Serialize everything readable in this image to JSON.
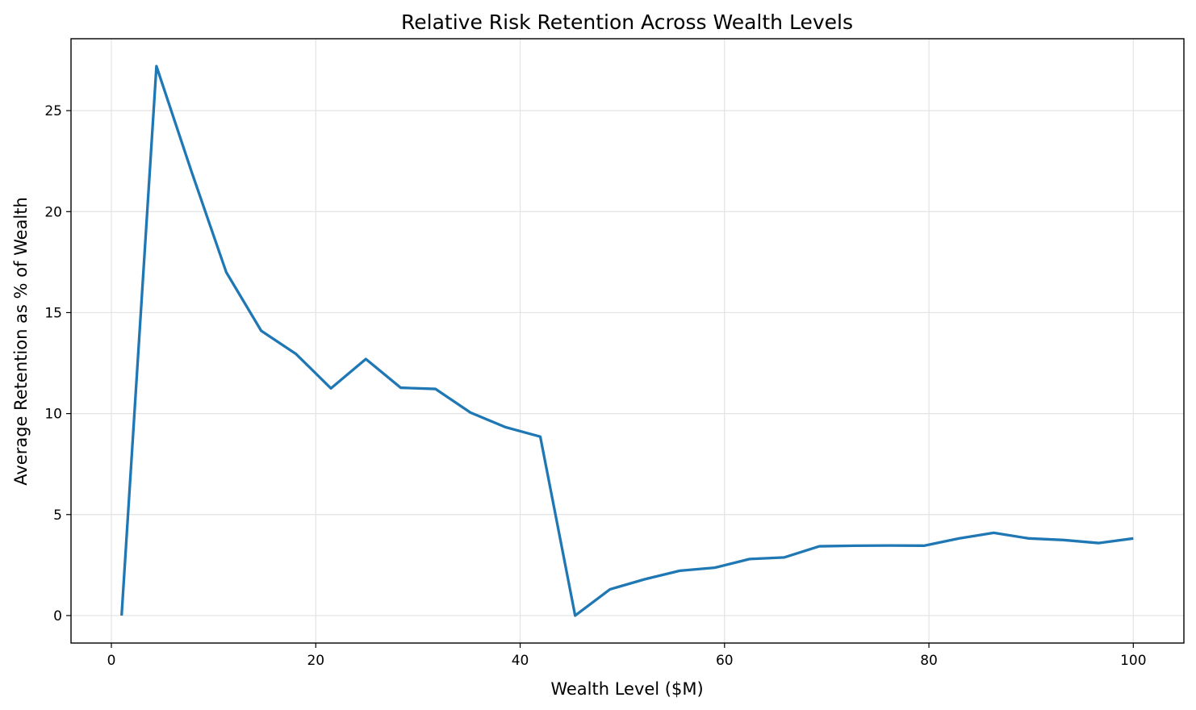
{
  "chart_data": {
    "type": "line",
    "title": "Relative Risk Retention Across Wealth Levels",
    "xlabel": "Wealth Level ($M)",
    "ylabel": "Average Retention as % of Wealth",
    "xlim": [
      -3.95,
      104.95
    ],
    "ylim": [
      -1.36,
      28.56
    ],
    "x_ticks": [
      0,
      20,
      40,
      60,
      80,
      100
    ],
    "y_ticks": [
      0,
      5,
      10,
      15,
      20,
      25
    ],
    "grid": true,
    "legend": "none",
    "series": [
      {
        "color": "#1f77b4",
        "x": [
          1.0,
          4.41,
          7.83,
          11.24,
          14.66,
          18.07,
          21.48,
          24.9,
          28.31,
          31.72,
          35.14,
          38.55,
          41.97,
          45.38,
          48.79,
          52.21,
          55.62,
          59.03,
          62.45,
          65.86,
          69.28,
          72.69,
          76.1,
          79.52,
          82.93,
          86.34,
          89.76,
          93.17,
          96.59,
          100.0
        ],
        "values": [
          0.0,
          27.2,
          22.0,
          17.0,
          14.1,
          12.95,
          11.25,
          12.7,
          11.28,
          11.22,
          10.05,
          9.33,
          8.86,
          0.0,
          1.3,
          1.8,
          2.22,
          2.37,
          2.8,
          2.88,
          3.43,
          3.46,
          3.47,
          3.46,
          3.82,
          4.1,
          3.82,
          3.74,
          3.59,
          3.82
        ]
      }
    ]
  }
}
